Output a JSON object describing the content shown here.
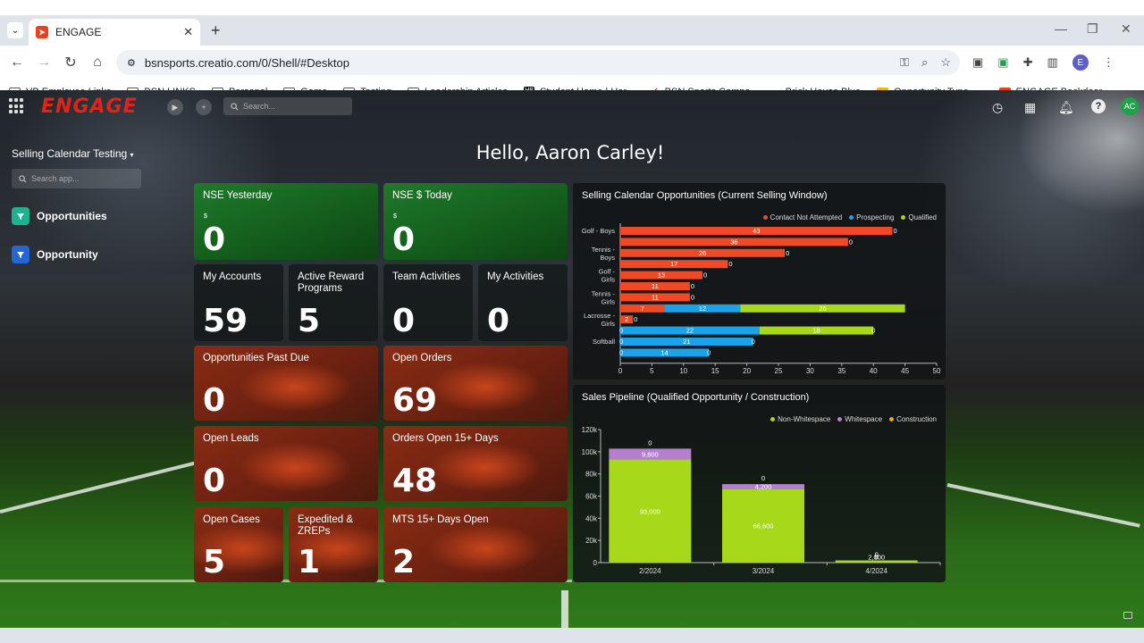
{
  "browser": {
    "tab_title": "ENGAGE",
    "url": "bsnsports.creatio.com/0/Shell/#Desktop",
    "profile_initial": "E",
    "bookmarks": [
      {
        "label": "VB Employee Links",
        "icon": "folder-link-icon"
      },
      {
        "label": "BSN LINKS",
        "icon": "folder-icon"
      },
      {
        "label": "Personal",
        "icon": "folder-icon"
      },
      {
        "label": "Game",
        "icon": "folder-icon"
      },
      {
        "label": "Testing",
        "icon": "folder-icon"
      },
      {
        "label": "Leadership Articles",
        "icon": "folder-icon"
      },
      {
        "label": "Student Home | Har...",
        "icon": "hb-icon"
      },
      {
        "label": "BSN Sports Compa...",
        "icon": "bsn-icon"
      },
      {
        "label": "Brick House Blue",
        "icon": "doc-icon"
      },
      {
        "label": "Opportunity Type -...",
        "icon": "sheet-icon"
      },
      {
        "label": "ENGAGE Backdoor",
        "icon": "engage-icon"
      }
    ]
  },
  "app": {
    "logo": "ENGAGE",
    "search_placeholder": "Search...",
    "avatar": "AC",
    "workspace": "Selling Calendar Testing",
    "app_search_placeholder": "Search app...",
    "nav": [
      {
        "label": "Opportunities",
        "color": "#1db391"
      },
      {
        "label": "Opportunity",
        "color": "#2466d6"
      }
    ],
    "greeting": "Hello, Aaron Carley!"
  },
  "tiles": {
    "nse_yesterday": {
      "title": "NSE Yesterday",
      "prefix": "$",
      "value": "0"
    },
    "nse_today": {
      "title": "NSE $ Today",
      "prefix": "$",
      "value": "0"
    },
    "my_accounts": {
      "title": "My Accounts",
      "value": "59"
    },
    "active_reward": {
      "title": "Active Reward Programs",
      "value": "5"
    },
    "team_activities": {
      "title": "Team Activities",
      "value": "0"
    },
    "my_activities": {
      "title": "My Activities",
      "value": "0"
    },
    "opps_past_due": {
      "title": "Opportunities Past Due",
      "value": "0"
    },
    "open_orders": {
      "title": "Open Orders",
      "value": "69"
    },
    "open_leads": {
      "title": "Open Leads",
      "value": "0"
    },
    "orders_open_15": {
      "title": "Orders Open 15+ Days",
      "value": "48"
    },
    "open_cases": {
      "title": "Open Cases",
      "value": "5"
    },
    "expedited": {
      "title": "Expedited & ZREPs",
      "value": "1"
    },
    "mts_15": {
      "title": "MTS 15+ Days Open",
      "value": "2"
    }
  },
  "chart_data": [
    {
      "type": "bar",
      "orientation": "horizontal",
      "stacked": true,
      "title": "Selling Calendar Opportunities (Current Selling Window)",
      "legend_position": "top-right",
      "row_labels": [
        "Golf - Boys",
        "",
        "Tennis - Boys",
        "",
        "Golf - Girls",
        "",
        "Tennis - Girls",
        "",
        "Lacrosse - Girls",
        "",
        "Softball",
        ""
      ],
      "series": [
        {
          "name": "Contact Not Attempted",
          "color": "#f04a24",
          "values": [
            43,
            36,
            26,
            17,
            13,
            11,
            11,
            7,
            2,
            0,
            0,
            0
          ]
        },
        {
          "name": "Prospecting",
          "color": "#1aa3e8",
          "values": [
            0,
            0,
            0,
            0,
            0,
            0,
            0,
            12,
            0,
            22,
            21,
            14
          ]
        },
        {
          "name": "Qualified",
          "color": "#a8d81a",
          "values": [
            0,
            0,
            0,
            0,
            0,
            0,
            0,
            26,
            0,
            18,
            0,
            0
          ]
        }
      ],
      "xlim": [
        0,
        50
      ],
      "xticks": [
        0,
        5,
        10,
        15,
        20,
        25,
        30,
        35,
        40,
        45,
        50
      ]
    },
    {
      "type": "bar",
      "stacked": true,
      "title": "Sales Pipeline (Qualified Opportunity / Construction)",
      "legend_position": "top-right",
      "categories": [
        "2/2024",
        "3/2024",
        "4/2024"
      ],
      "series": [
        {
          "name": "Non-Whitespace",
          "color": "#a8d81a",
          "values": [
            93000,
            66600,
            2000
          ]
        },
        {
          "name": "Whitespace",
          "color": "#b57fd0",
          "values": [
            9800,
            4200,
            0
          ]
        },
        {
          "name": "Construction",
          "color": "#f5a623",
          "values": [
            0,
            0,
            0
          ]
        }
      ],
      "bar_labels": [
        [
          "93,000",
          "9,800",
          "0"
        ],
        [
          "66,600",
          "4,200",
          "0"
        ],
        [
          "2,000",
          "0",
          "0"
        ]
      ],
      "ylim": [
        0,
        120000
      ],
      "yticks": [
        "0",
        "20k",
        "40k",
        "60k",
        "80k",
        "100k",
        "120k"
      ]
    }
  ]
}
